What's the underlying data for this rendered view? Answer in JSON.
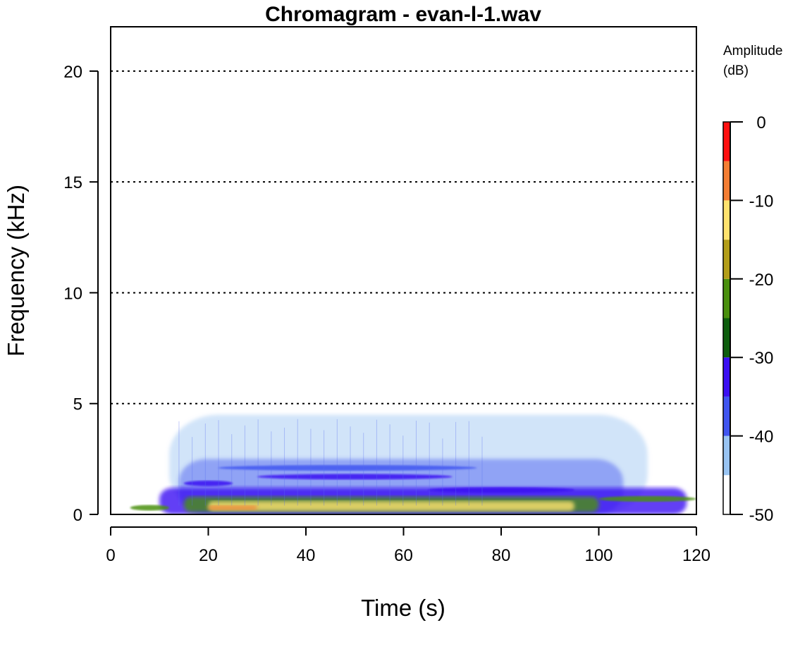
{
  "chart_data": {
    "type": "heatmap",
    "title": "Chromagram - evan-l-1.wav",
    "xlabel": "Time (s)",
    "ylabel": "Frequency (kHz)",
    "xlim": [
      0,
      120
    ],
    "ylim": [
      0,
      22
    ],
    "x_ticks": [
      "0",
      "20",
      "40",
      "60",
      "80",
      "100",
      "120"
    ],
    "y_ticks": [
      "0",
      "5",
      "10",
      "15",
      "20"
    ],
    "gridlines_y": [
      5,
      10,
      15,
      20
    ],
    "grid": "horizontal dotted",
    "legend": {
      "title_line1": "Amplitude",
      "title_line2": "(dB)",
      "placement": "right",
      "range": [
        -50,
        0
      ],
      "ticks": [
        "0",
        "-10",
        "-20",
        "-30",
        "-40",
        "-50"
      ],
      "colors": [
        "#ffffff",
        "#99c4f2",
        "#4055f0",
        "#3b0ff2",
        "#0e5e0e",
        "#4a900e",
        "#b39e19",
        "#ffe26e",
        "#f57e33",
        "#ff0f0f"
      ]
    },
    "energy_regions": [
      {
        "t_start": 12,
        "t_end": 110,
        "f_low": 0.0,
        "f_high": 4.5,
        "level_db": -42
      },
      {
        "t_start": 14,
        "t_end": 105,
        "f_low": 0.0,
        "f_high": 2.5,
        "level_db": -38
      },
      {
        "t_start": 10,
        "t_end": 118,
        "f_low": 0.0,
        "f_high": 1.2,
        "level_db": -33
      },
      {
        "t_start": 15,
        "t_end": 100,
        "f_low": 0.1,
        "f_high": 0.8,
        "level_db": -25
      },
      {
        "t_start": 20,
        "t_end": 95,
        "f_low": 0.15,
        "f_high": 0.6,
        "level_db": -15
      },
      {
        "t_start": 20,
        "t_end": 30,
        "f_low": 0.2,
        "f_high": 0.4,
        "level_db": -8
      }
    ],
    "bands": [
      {
        "t_start": 4,
        "t_end": 12,
        "f": 0.3,
        "level_db": -25
      },
      {
        "t_start": 100,
        "t_end": 120,
        "f": 0.7,
        "level_db": -25
      },
      {
        "t_start": 15,
        "t_end": 25,
        "f": 1.4,
        "level_db": -33
      },
      {
        "t_start": 22,
        "t_end": 75,
        "f": 2.1,
        "level_db": -36
      },
      {
        "t_start": 30,
        "t_end": 70,
        "f": 1.7,
        "level_db": -34
      },
      {
        "t_start": 65,
        "t_end": 95,
        "f": 1.1,
        "level_db": -35
      }
    ]
  }
}
